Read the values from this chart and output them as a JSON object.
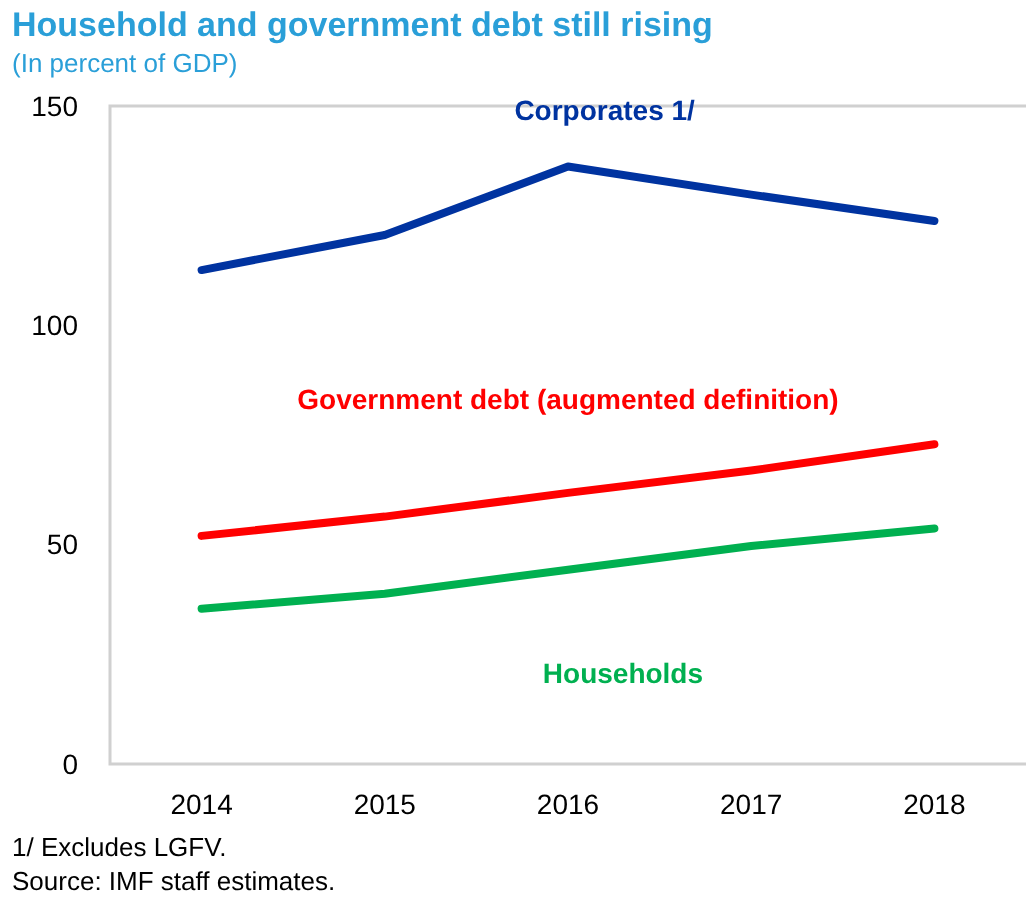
{
  "chart_data": {
    "type": "line",
    "title": "Household and government debt still rising",
    "subtitle": "(In percent of GDP)",
    "categories": [
      "2014",
      "2015",
      "2016",
      "2017",
      "2018"
    ],
    "series": [
      {
        "name": "Corporates 1/",
        "color": "#0033a0",
        "values": [
          112.6,
          120.6,
          136.2,
          129.8,
          123.8
        ]
      },
      {
        "name": "Government debt (augmented definition)",
        "color": "#ff0000",
        "values": [
          52.0,
          56.4,
          61.8,
          66.9,
          72.9
        ]
      },
      {
        "name": "Households",
        "color": "#00b050",
        "values": [
          35.4,
          38.8,
          44.3,
          49.7,
          53.7
        ]
      }
    ],
    "ylim": [
      0,
      150
    ],
    "yticks": [
      0,
      50,
      100,
      150
    ],
    "grid": false,
    "legend": false,
    "marker": "none",
    "line_style": "solid",
    "annotations": [
      "1/ Excludes LGFV.",
      "Source: IMF staff estimates."
    ]
  }
}
